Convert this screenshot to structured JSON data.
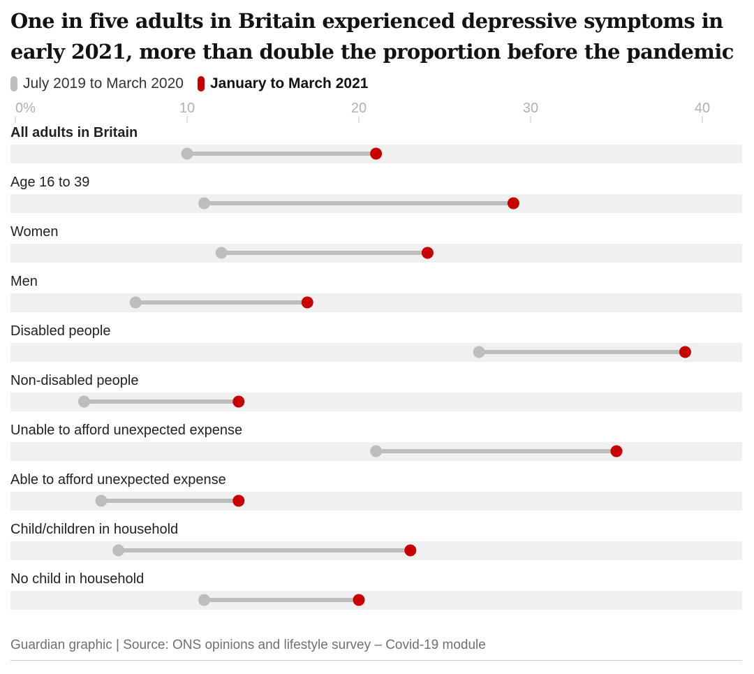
{
  "title": "One in five adults in Britain experienced depressive symptoms in early 2021, more than double the proportion before the pandemic",
  "source": "Guardian graphic | Source: ONS opinions and lifestyle survey – Covid-19 module",
  "colors": {
    "before": "#bdbdbd",
    "after": "#c70000",
    "band": "#f0f0f0",
    "tick": "#c8c8c8"
  },
  "chart_data": {
    "type": "dumbbell",
    "xlim": [
      0,
      42
    ],
    "x_ticks": [
      {
        "value": 0,
        "label": "0%"
      },
      {
        "value": 10,
        "label": "10"
      },
      {
        "value": 20,
        "label": "20"
      },
      {
        "value": 30,
        "label": "30"
      },
      {
        "value": 40,
        "label": "40"
      }
    ],
    "series": [
      {
        "name": "July 2019 to March 2020",
        "color": "#bdbdbd"
      },
      {
        "name": "January to March 2021",
        "color": "#c70000"
      }
    ],
    "categories": [
      "All adults in Britain",
      "Age 16 to 39",
      "Women",
      "Men",
      "Disabled people",
      "Non-disabled people",
      "Unable to afford unexpected expense",
      "Able to afford unexpected expense",
      "Child/children in household",
      "No child in household"
    ],
    "before": [
      10,
      11,
      12,
      7,
      27,
      4,
      21,
      5,
      6,
      11
    ],
    "after": [
      21,
      29,
      24,
      17,
      39,
      13,
      35,
      13,
      23,
      20
    ],
    "bold_categories": [
      "All adults in Britain"
    ]
  }
}
